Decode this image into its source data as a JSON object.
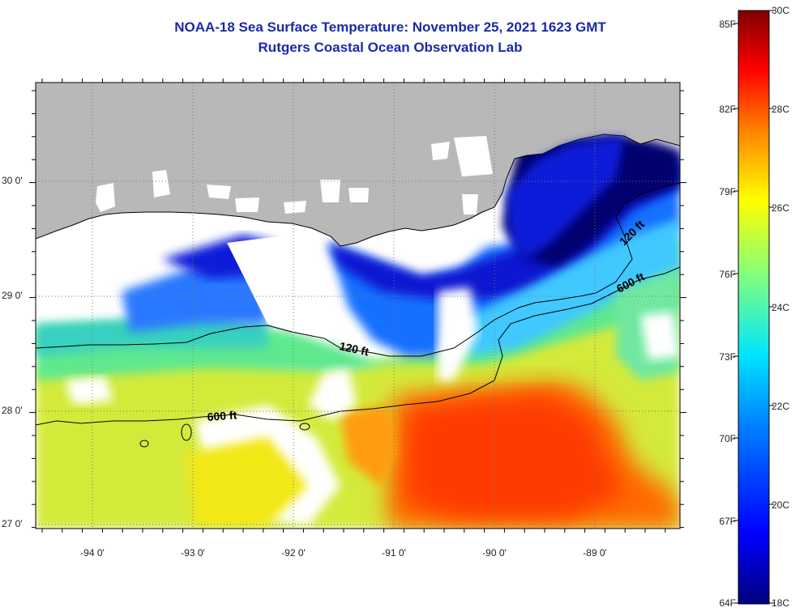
{
  "title": {
    "line1": "NOAA-18 Sea Surface Temperature:  November 25, 2021 1623 GMT",
    "line2": "Rutgers Coastal Ocean Observation Lab"
  },
  "map": {
    "lat_labels": [
      "30 0'",
      "29 0'",
      "28 0'",
      "27 0'"
    ],
    "lon_labels": [
      "-94 0'",
      "-93 0'",
      "-92 0'",
      "-91 0'",
      "-90 0'",
      "-89 0'"
    ],
    "contour_labels": [
      "120 ft",
      "600 ft",
      "120 ft",
      "600 ft"
    ],
    "colors": {
      "land": "#b8b8b8",
      "cloud_nodata": "#ffffff",
      "coastline": "#000000"
    }
  },
  "colorbar": {
    "fahrenheit_labels": [
      "85F",
      "82F",
      "79F",
      "76F",
      "73F",
      "70F",
      "67F",
      "64F"
    ],
    "celsius_labels": [
      "30C",
      "28C",
      "26C",
      "24C",
      "22C",
      "20C",
      "18C"
    ],
    "range_celsius": [
      18,
      30
    ],
    "colormap": [
      "#00007f",
      "#0000ff",
      "#0080ff",
      "#00e5ff",
      "#7fff7f",
      "#ffff00",
      "#ff8000",
      "#ff0000",
      "#7f0000"
    ]
  }
}
